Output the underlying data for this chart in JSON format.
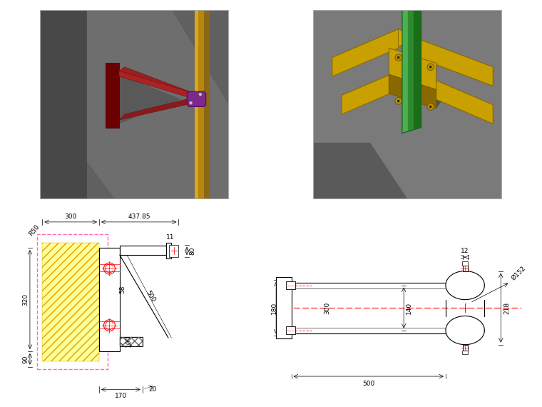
{
  "bg_color": "#ffffff",
  "dim_fontsize": 6.5,
  "dim_color": "#000000",
  "red_color": "#ff0000",
  "yellow_fill": "#ffff99",
  "pink_dash": "#ff69b4"
}
